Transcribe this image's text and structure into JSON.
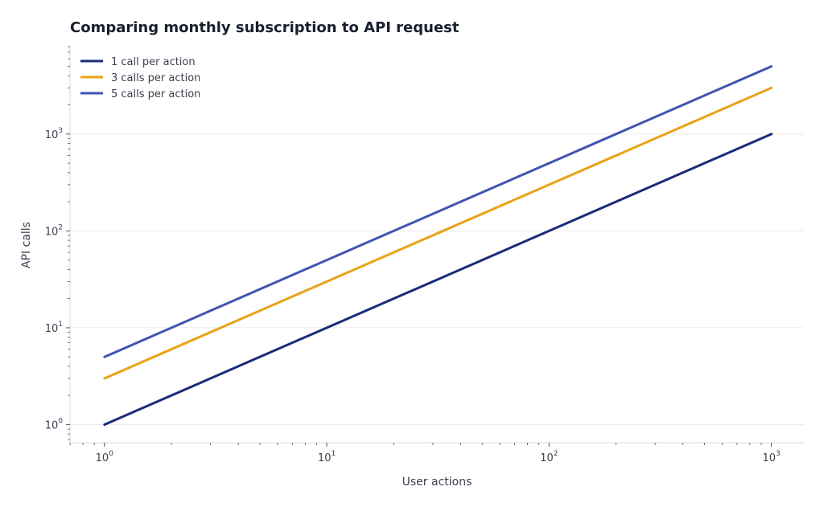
{
  "chart_data": {
    "type": "line",
    "title": "Comparing monthly subscription to API request",
    "xlabel": "User actions",
    "ylabel": "API calls",
    "xscale": "log",
    "yscale": "log",
    "xlim": [
      0.7,
      1400
    ],
    "ylim": [
      0.65,
      8000
    ],
    "x_ticks": [
      {
        "value": 1,
        "base": "10",
        "exp": "0"
      },
      {
        "value": 10,
        "base": "10",
        "exp": "1"
      },
      {
        "value": 100,
        "base": "10",
        "exp": "2"
      },
      {
        "value": 1000,
        "base": "10",
        "exp": "3"
      }
    ],
    "y_ticks": [
      {
        "value": 1,
        "base": "10",
        "exp": "0"
      },
      {
        "value": 10,
        "base": "10",
        "exp": "1"
      },
      {
        "value": 100,
        "base": "10",
        "exp": "2"
      },
      {
        "value": 1000,
        "base": "10",
        "exp": "3"
      }
    ],
    "grid": "horizontal",
    "legend_position": "top-left",
    "series": [
      {
        "name": "1 call per action",
        "color": "#1b2a78",
        "x": [
          1,
          1000
        ],
        "y": [
          1,
          1000
        ]
      },
      {
        "name": "3 calls per action",
        "color": "#e8a317",
        "x": [
          1,
          1000
        ],
        "y": [
          3,
          3000
        ]
      },
      {
        "name": "5 calls per action",
        "color": "#4353b0",
        "x": [
          1,
          1000
        ],
        "y": [
          5,
          5000
        ]
      }
    ]
  }
}
